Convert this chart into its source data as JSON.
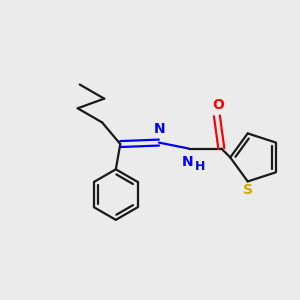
{
  "background_color": "#ebebeb",
  "bond_color": "#1a1a1a",
  "N_color": "#0000ff",
  "O_color": "#ff0000",
  "S_color": "#ccaa00",
  "figsize": [
    3.0,
    3.0
  ],
  "dpi": 100,
  "bond_lw": 1.6,
  "font_size": 10,
  "xlim": [
    0,
    10
  ],
  "ylim": [
    0,
    10
  ]
}
